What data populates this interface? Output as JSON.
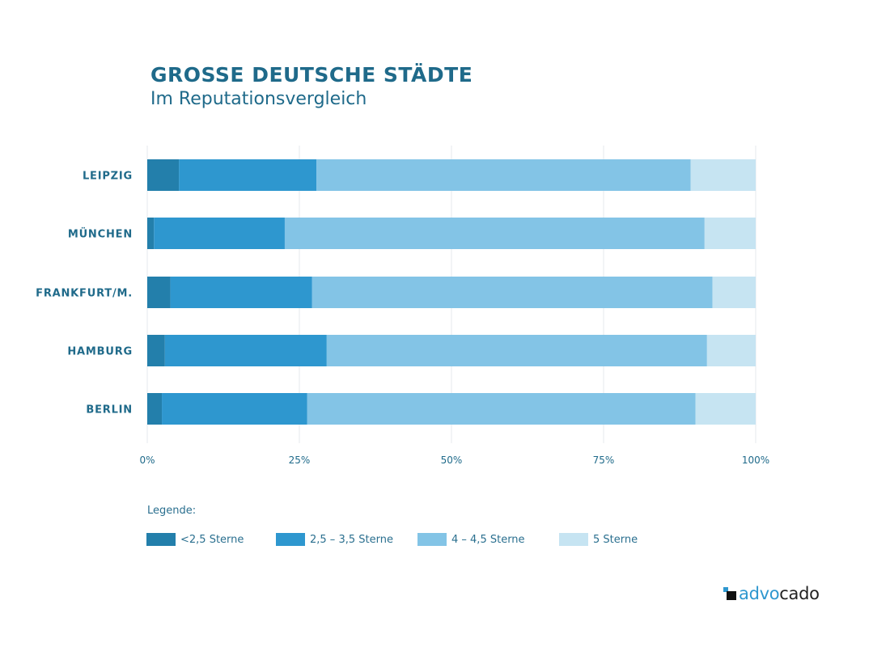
{
  "header": {
    "title": "GROSSE DEUTSCHE STÄDTE",
    "subtitle": "Im Reputationsvergleich"
  },
  "legend": {
    "title": "Legende:",
    "items": [
      {
        "label": "<2,5 Sterne",
        "color": "#237fab"
      },
      {
        "label": "2,5 – 3,5 Sterne",
        "color": "#2e97cf"
      },
      {
        "label": "4 – 4,5 Sterne",
        "color": "#83c4e6"
      },
      {
        "label": "5 Sterne",
        "color": "#c6e4f2"
      }
    ]
  },
  "logo": {
    "text_part1": "advo",
    "text_part2": "cado"
  },
  "chart_data": {
    "type": "bar",
    "orientation": "horizontal",
    "stacked": true,
    "categories": [
      "LEIPZIG",
      "MÜNCHEN",
      "FRANKFURT/M.",
      "HAMBURG",
      "BERLIN"
    ],
    "series": [
      {
        "name": "<2,5 Sterne",
        "values": [
          5.2,
          1.1,
          3.8,
          2.9,
          2.4
        ],
        "color": "#237fab"
      },
      {
        "name": "2,5 – 3,5 Sterne",
        "values": [
          22.6,
          21.5,
          23.3,
          26.6,
          23.9
        ],
        "color": "#2e97cf"
      },
      {
        "name": "4 – 4,5 Sterne",
        "values": [
          61.5,
          69.0,
          65.8,
          62.5,
          63.8
        ],
        "color": "#83c4e6"
      },
      {
        "name": "5 Sterne",
        "values": [
          10.7,
          8.4,
          7.1,
          8.0,
          9.9
        ],
        "color": "#c6e4f2"
      }
    ],
    "xticks": [
      "0%",
      "25%",
      "50%",
      "75%",
      "100%"
    ],
    "xlim": [
      0,
      100
    ],
    "grid": true,
    "legend_position": "bottom"
  }
}
